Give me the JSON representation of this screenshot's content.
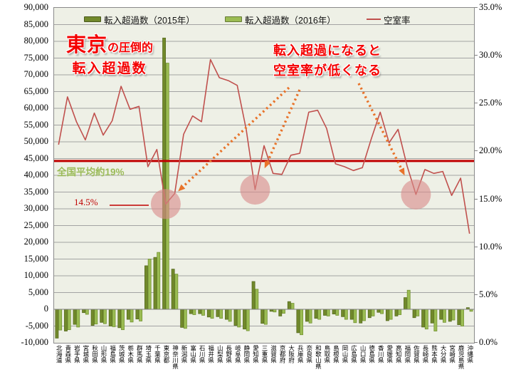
{
  "chart_data": {
    "type": "bar+line combo",
    "categories": [
      "北海道",
      "青森県",
      "岩手県",
      "宮城県",
      "秋田県",
      "山形県",
      "福島県",
      "茨城県",
      "栃木県",
      "群馬県",
      "埼玉県",
      "千葉県",
      "東京都",
      "神奈川県",
      "新潟県",
      "富山県",
      "石川県",
      "福井県",
      "山梨県",
      "長野県",
      "岐阜県",
      "静岡県",
      "愛知県",
      "三重県",
      "滋賀県",
      "京都府",
      "大阪府",
      "兵庫県",
      "奈良県",
      "和歌山県",
      "鳥取県",
      "島根県",
      "岡山県",
      "広島県",
      "山口県",
      "徳島県",
      "香川県",
      "愛媛県",
      "高知県",
      "福岡県",
      "佐賀県",
      "長崎県",
      "熊本県",
      "大分県",
      "宮崎県",
      "鹿児島県",
      "沖縄県"
    ],
    "series": [
      {
        "name": "転入超過数（2015年）",
        "type": "bar",
        "axis": "left",
        "color": "#71892B",
        "border": "#55691F",
        "values": [
          -8600,
          -6500,
          -4500,
          -1000,
          -4800,
          -3900,
          -5000,
          -5500,
          -3000,
          -2900,
          13000,
          15500,
          81000,
          12000,
          -5400,
          -1300,
          -1300,
          -2300,
          -2200,
          -3000,
          -4800,
          -5900,
          8300,
          -4200,
          -600,
          -2000,
          2300,
          -7000,
          -3600,
          -2700,
          -1800,
          -1400,
          -2200,
          -3000,
          -4100,
          -2500,
          -900,
          -3400,
          -2000,
          3500,
          -2500,
          -5300,
          -4100,
          -3000,
          -3600,
          -4600,
          500
        ]
      },
      {
        "name": "転入超過数（2016年）",
        "type": "bar",
        "axis": "left",
        "color": "#9BBC53",
        "border": "#71912F",
        "values": [
          -6200,
          -6100,
          -5300,
          -1500,
          -4400,
          -4300,
          -5200,
          -6100,
          -3800,
          -3500,
          15000,
          17000,
          73500,
          10500,
          -5700,
          -1600,
          -1800,
          -2700,
          -2700,
          -3600,
          -5300,
          -6400,
          6000,
          -4500,
          -800,
          -1200,
          1800,
          -7600,
          -4100,
          -3000,
          -2000,
          -1800,
          -3000,
          -4000,
          -3400,
          -2000,
          -1300,
          -3000,
          -1600,
          5700,
          -2000,
          -5900,
          -6500,
          -3900,
          -3200,
          -5000,
          -600
        ]
      },
      {
        "name": "空室率",
        "type": "line",
        "axis": "right",
        "color": "#C0504D",
        "values": [
          20.7,
          25.7,
          23.1,
          21.2,
          24.0,
          21.7,
          23.2,
          26.8,
          24.4,
          24.7,
          18.4,
          20.2,
          14.5,
          15.6,
          21.8,
          23.7,
          23.1,
          29.6,
          27.7,
          27.4,
          26.9,
          22.3,
          16.0,
          20.6,
          17.7,
          17.6,
          19.6,
          19.8,
          24.1,
          24.3,
          22.4,
          18.7,
          18.4,
          18.0,
          18.3,
          21.3,
          24.1,
          20.9,
          22.3,
          18.5,
          15.5,
          18.1,
          17.7,
          17.9,
          15.4,
          17.2,
          11.4
        ]
      }
    ],
    "left_axis": {
      "min": -10000,
      "max": 90000,
      "step": 5000
    },
    "right_axis": {
      "min": 0,
      "max": 35,
      "step": 5,
      "unit": "%",
      "decimals": 1
    },
    "average_line": {
      "value_pct": 19,
      "color": "#C00000"
    },
    "highlight_circles": {
      "color": "#D98C8A",
      "opacity": 0.62,
      "radius": 21,
      "category_indexes": [
        12,
        22,
        40
      ]
    },
    "arrows": {
      "color": "#E8732A",
      "segments": [
        [
          330,
          112,
          180,
          252
        ],
        [
          345,
          115,
          299,
          218
        ],
        [
          428,
          106,
          489,
          228
        ]
      ]
    },
    "plot_background": "#EEF0E6",
    "gridline_color": "#A3A3A3"
  },
  "legend": {
    "item_2015": "転入超過数（2015年）",
    "item_2016": "転入超過数（2016年）",
    "item_rate": "空室率"
  },
  "annotations": {
    "tokyo": {
      "big": "東京",
      "rest": "の圧倒的",
      "line2": "転入超過数"
    },
    "vacancy": {
      "line1": "転入超過になると",
      "line2": "空室率が低くなる"
    },
    "avg_label": "全国平均約19%",
    "tokyo_rate": "14.5%"
  }
}
